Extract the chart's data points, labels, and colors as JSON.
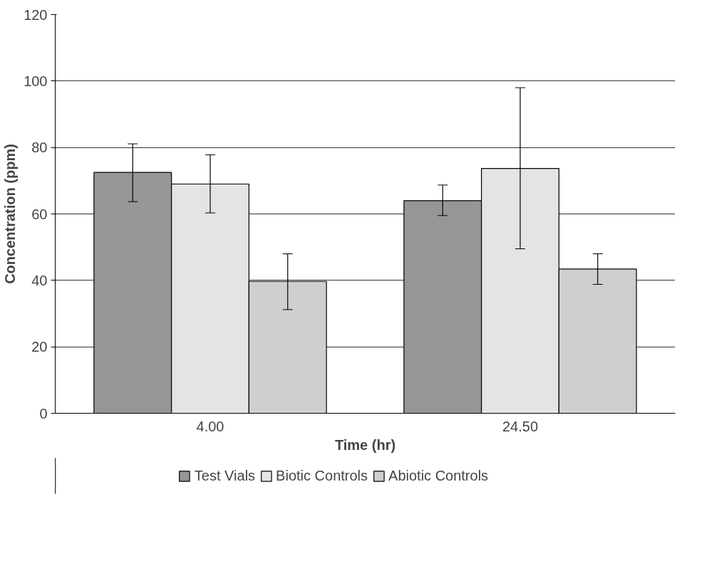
{
  "chart_data": {
    "type": "bar",
    "xlabel": "Time (hr)",
    "ylabel": "Concentration (ppm)",
    "categories": [
      "4.00",
      "24.50"
    ],
    "series": [
      {
        "name": "Test Vials",
        "color": "#969696",
        "values": [
          72.5,
          64.0
        ],
        "errors": [
          [
            63.7,
            81.1
          ],
          [
            59.5,
            68.7
          ]
        ]
      },
      {
        "name": "Biotic Controls",
        "color": "#e4e4e4",
        "values": [
          69.0,
          73.7
        ],
        "errors": [
          [
            60.3,
            77.8
          ],
          [
            49.5,
            98.0
          ]
        ]
      },
      {
        "name": "Abiotic Controls",
        "color": "#cfcfcf",
        "values": [
          39.7,
          43.4
        ],
        "errors": [
          [
            31.2,
            48.0
          ],
          [
            38.8,
            48.0
          ]
        ]
      }
    ],
    "ylim": [
      0,
      120
    ],
    "yticks": [
      0,
      20,
      40,
      60,
      80,
      100,
      120
    ],
    "grid": "y",
    "legend": "bottom"
  }
}
